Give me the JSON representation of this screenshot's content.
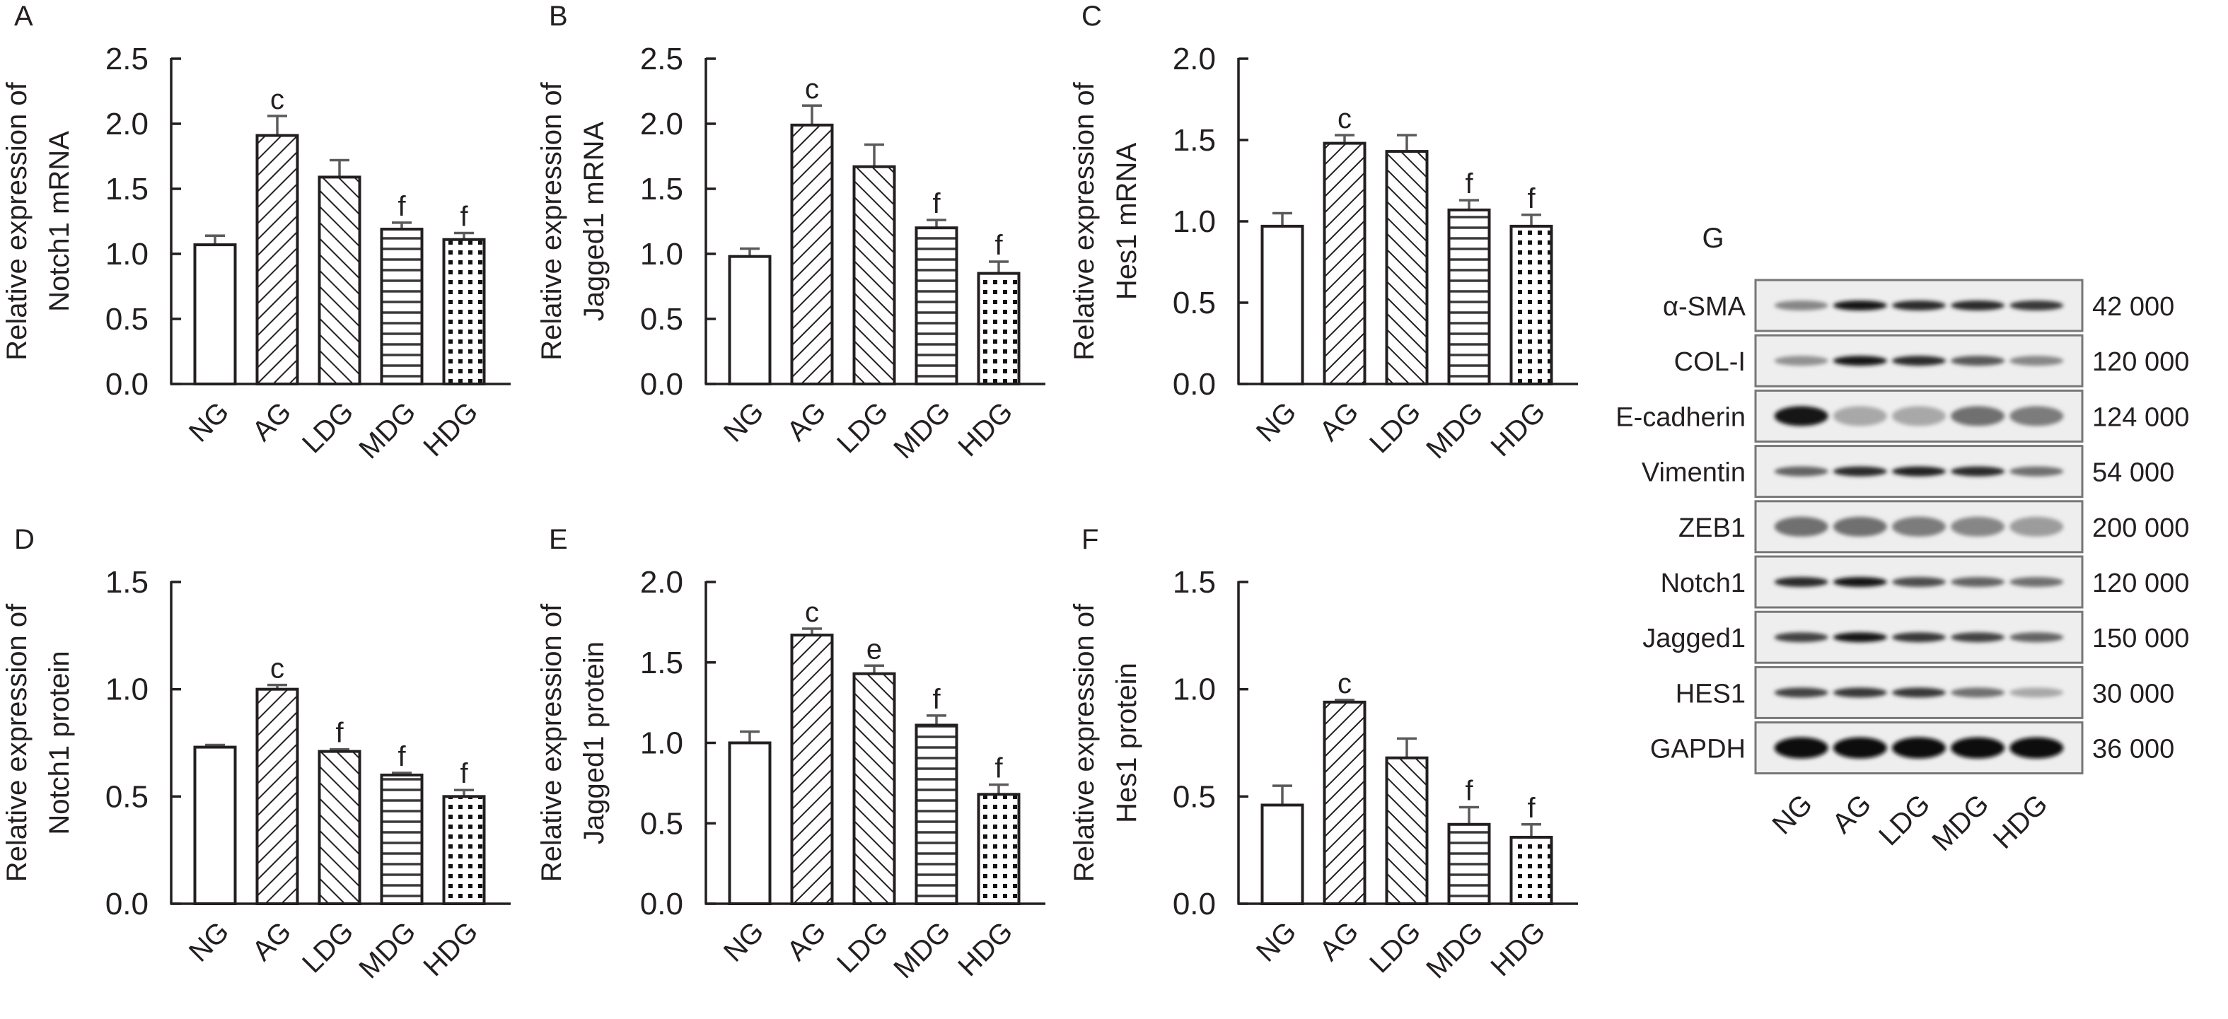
{
  "figure": {
    "categories": [
      "NG",
      "AG",
      "LDG",
      "MDG",
      "HDG"
    ],
    "patterns": [
      "open",
      "diag-up",
      "diag-down",
      "horizontal",
      "dots"
    ]
  },
  "chart_data": [
    {
      "id": "A",
      "type": "bar",
      "panel_letter": "A",
      "title": "",
      "ylabel": [
        "Relative expression of",
        "Notch1 mRNA"
      ],
      "xlabel": "",
      "categories": [
        "NG",
        "AG",
        "LDG",
        "MDG",
        "HDG"
      ],
      "values": [
        1.07,
        1.91,
        1.59,
        1.19,
        1.11
      ],
      "error_upper": [
        1.14,
        2.06,
        1.72,
        1.24,
        1.16
      ],
      "significance": [
        "",
        "c",
        "",
        "f",
        "f"
      ],
      "ylim": [
        0,
        2.5
      ],
      "yticks": [
        "0.0",
        "0.5",
        "1.0",
        "1.5",
        "2.0",
        "2.5"
      ],
      "grid": false,
      "row": 0,
      "col": 0
    },
    {
      "id": "B",
      "type": "bar",
      "panel_letter": "B",
      "title": "",
      "ylabel": [
        "Relative expression of",
        "Jagged1 mRNA"
      ],
      "xlabel": "",
      "categories": [
        "NG",
        "AG",
        "LDG",
        "MDG",
        "HDG"
      ],
      "values": [
        0.98,
        1.99,
        1.67,
        1.2,
        0.85
      ],
      "error_upper": [
        1.04,
        2.14,
        1.84,
        1.26,
        0.94
      ],
      "significance": [
        "",
        "c",
        "",
        "f",
        "f"
      ],
      "ylim": [
        0,
        2.5
      ],
      "yticks": [
        "0.0",
        "0.5",
        "1.0",
        "1.5",
        "2.0",
        "2.5"
      ],
      "grid": false,
      "row": 0,
      "col": 1
    },
    {
      "id": "C",
      "type": "bar",
      "panel_letter": "C",
      "title": "",
      "ylabel": [
        "Relative expression of",
        "Hes1 mRNA"
      ],
      "xlabel": "",
      "categories": [
        "NG",
        "AG",
        "LDG",
        "MDG",
        "HDG"
      ],
      "values": [
        0.97,
        1.48,
        1.43,
        1.07,
        0.97
      ],
      "error_upper": [
        1.05,
        1.53,
        1.53,
        1.13,
        1.04
      ],
      "significance": [
        "",
        "c",
        "",
        "f",
        "f"
      ],
      "ylim": [
        0,
        2.0
      ],
      "yticks": [
        "0.0",
        "0.5",
        "1.0",
        "1.5",
        "2.0"
      ],
      "grid": false,
      "row": 0,
      "col": 2
    },
    {
      "id": "D",
      "type": "bar",
      "panel_letter": "D",
      "title": "",
      "ylabel": [
        "Relative expression of",
        "Notch1 protein"
      ],
      "xlabel": "",
      "categories": [
        "NG",
        "AG",
        "LDG",
        "MDG",
        "HDG"
      ],
      "values": [
        0.73,
        1.0,
        0.71,
        0.6,
        0.5
      ],
      "error_upper": [
        0.74,
        1.02,
        0.72,
        0.61,
        0.53
      ],
      "significance": [
        "",
        "c",
        "f",
        "f",
        "f"
      ],
      "ylim": [
        0,
        1.5
      ],
      "yticks": [
        "0.0",
        "0.5",
        "1.0",
        "1.5"
      ],
      "grid": false,
      "row": 1,
      "col": 0
    },
    {
      "id": "E",
      "type": "bar",
      "panel_letter": "E",
      "title": "",
      "ylabel": [
        "Relative expression of",
        "Jagged1 protein"
      ],
      "xlabel": "",
      "categories": [
        "NG",
        "AG",
        "LDG",
        "MDG",
        "HDG"
      ],
      "values": [
        1.0,
        1.67,
        1.43,
        1.11,
        0.68
      ],
      "error_upper": [
        1.07,
        1.71,
        1.48,
        1.17,
        0.74
      ],
      "significance": [
        "",
        "c",
        "e",
        "f",
        "f"
      ],
      "ylim": [
        0,
        2.0
      ],
      "yticks": [
        "0.0",
        "0.5",
        "1.0",
        "1.5",
        "2.0"
      ],
      "grid": false,
      "row": 1,
      "col": 1
    },
    {
      "id": "F",
      "type": "bar",
      "panel_letter": "F",
      "title": "",
      "ylabel": [
        "Relative expression of",
        "Hes1 protein"
      ],
      "xlabel": "",
      "categories": [
        "NG",
        "AG",
        "LDG",
        "MDG",
        "HDG"
      ],
      "values": [
        0.46,
        0.94,
        0.68,
        0.37,
        0.31
      ],
      "error_upper": [
        0.55,
        0.95,
        0.77,
        0.45,
        0.37
      ],
      "significance": [
        "",
        "c",
        "",
        "f",
        "f"
      ],
      "ylim": [
        0,
        1.5
      ],
      "yticks": [
        "0.0",
        "0.5",
        "1.0",
        "1.5"
      ],
      "grid": false,
      "row": 1,
      "col": 2
    }
  ],
  "blot": {
    "panel_letter": "G",
    "lanes": [
      "NG",
      "AG",
      "LDG",
      "MDG",
      "HDG"
    ],
    "rows": [
      {
        "label": "α-SMA",
        "weight": "42 000",
        "intensity": [
          0.45,
          0.95,
          0.85,
          0.85,
          0.8
        ]
      },
      {
        "label": "COL-I",
        "weight": "120 000",
        "intensity": [
          0.4,
          0.95,
          0.85,
          0.65,
          0.45
        ]
      },
      {
        "label": "E-cadherin",
        "weight": "124 000",
        "intensity": [
          0.95,
          0.3,
          0.3,
          0.55,
          0.5
        ]
      },
      {
        "label": "Vimentin",
        "weight": "54 000",
        "intensity": [
          0.6,
          0.85,
          0.9,
          0.85,
          0.55
        ]
      },
      {
        "label": "ZEB1",
        "weight": "200 000",
        "intensity": [
          0.55,
          0.55,
          0.5,
          0.45,
          0.35
        ]
      },
      {
        "label": "Notch1",
        "weight": "120 000",
        "intensity": [
          0.85,
          0.95,
          0.7,
          0.6,
          0.55
        ]
      },
      {
        "label": "Jagged1",
        "weight": "150 000",
        "intensity": [
          0.75,
          0.95,
          0.8,
          0.75,
          0.6
        ]
      },
      {
        "label": "HES1",
        "weight": "30 000",
        "intensity": [
          0.75,
          0.8,
          0.8,
          0.55,
          0.3
        ]
      },
      {
        "label": "GAPDH",
        "weight": "36 000",
        "intensity": [
          1,
          1,
          1,
          1,
          1
        ]
      }
    ]
  }
}
